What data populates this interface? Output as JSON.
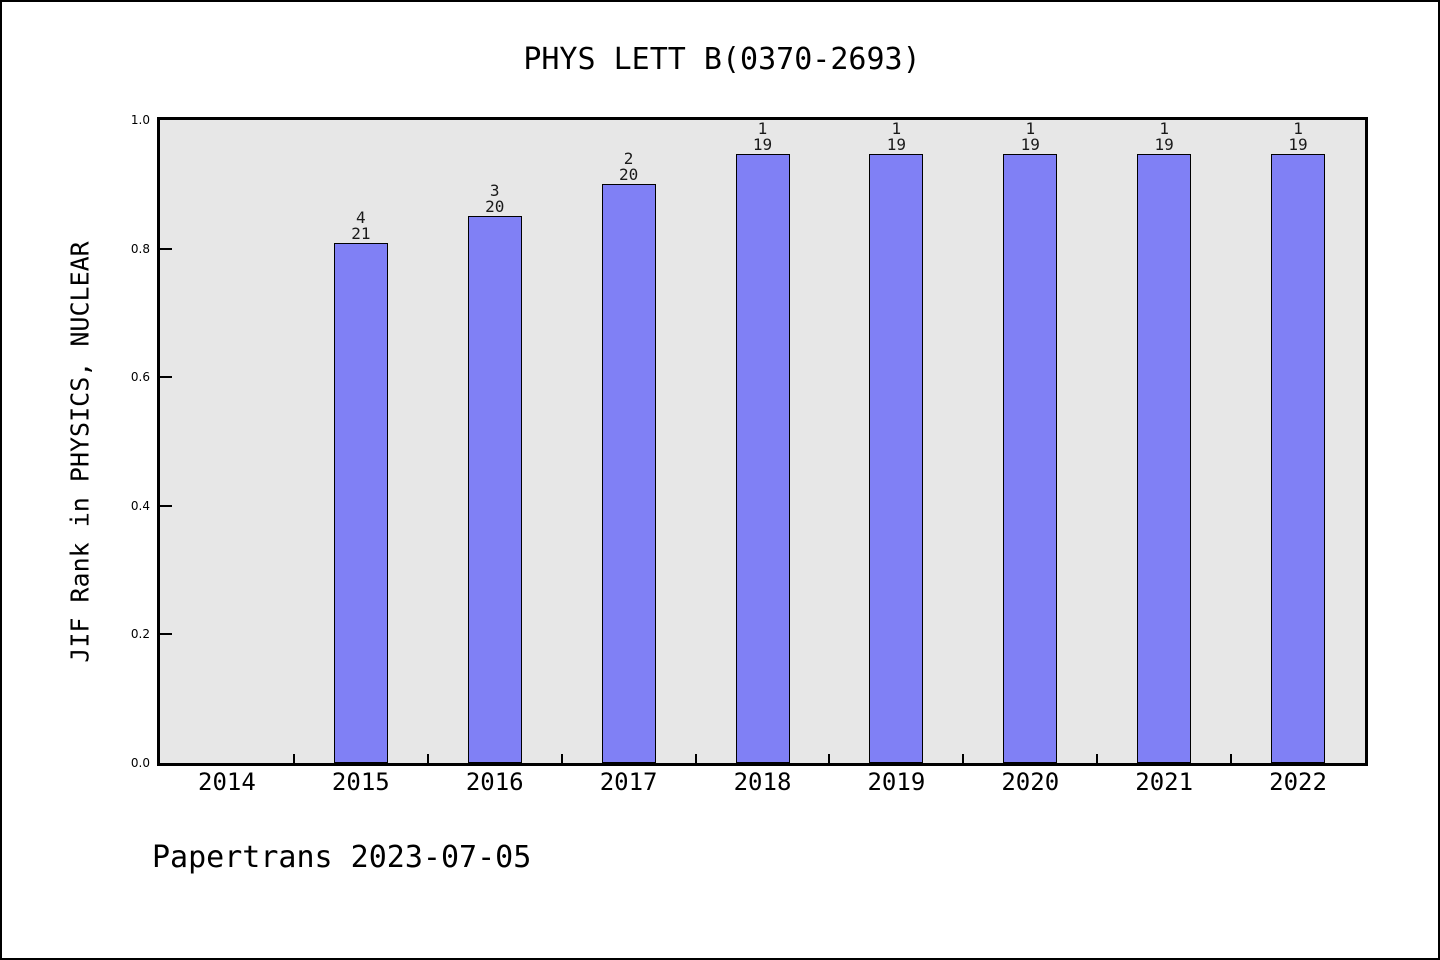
{
  "figure": {
    "title": "PHYS LETT B(0370-2693)",
    "footer": "Papertrans 2023-07-05"
  },
  "chart_data": {
    "type": "bar",
    "title": "PHYS LETT B(0370-2693)",
    "ylabel": "JIF Rank in PHYSICS, NUCLEAR",
    "xlabel": "",
    "ylim": [
      0.0,
      1.0
    ],
    "y_ticks": [
      0.0,
      0.2,
      0.4,
      0.6,
      0.8,
      1.0
    ],
    "y_tick_labels": [
      "0.0",
      "0.2",
      "0.4",
      "0.6",
      "0.8",
      "1.0"
    ],
    "x_range": [
      2013.5,
      2022.5
    ],
    "categories": [
      "2014",
      "2015",
      "2016",
      "2017",
      "2018",
      "2019",
      "2020",
      "2021",
      "2022"
    ],
    "grid": false,
    "legend": false,
    "plot_background": "#e7e7e7",
    "bar_color": "#8080f5",
    "bar_edge_color": "#000000",
    "bar_label_style": "rank over total, two lines above each bar",
    "bars": [
      {
        "year": "2015",
        "rank": 4,
        "total": 21,
        "value": 0.8095
      },
      {
        "year": "2016",
        "rank": 3,
        "total": 20,
        "value": 0.85
      },
      {
        "year": "2017",
        "rank": 2,
        "total": 20,
        "value": 0.9
      },
      {
        "year": "2018",
        "rank": 1,
        "total": 19,
        "value": 0.9474
      },
      {
        "year": "2019",
        "rank": 1,
        "total": 19,
        "value": 0.9474
      },
      {
        "year": "2020",
        "rank": 1,
        "total": 19,
        "value": 0.9474
      },
      {
        "year": "2021",
        "rank": 1,
        "total": 19,
        "value": 0.9474
      },
      {
        "year": "2022",
        "rank": 1,
        "total": 19,
        "value": 0.9474
      }
    ]
  }
}
